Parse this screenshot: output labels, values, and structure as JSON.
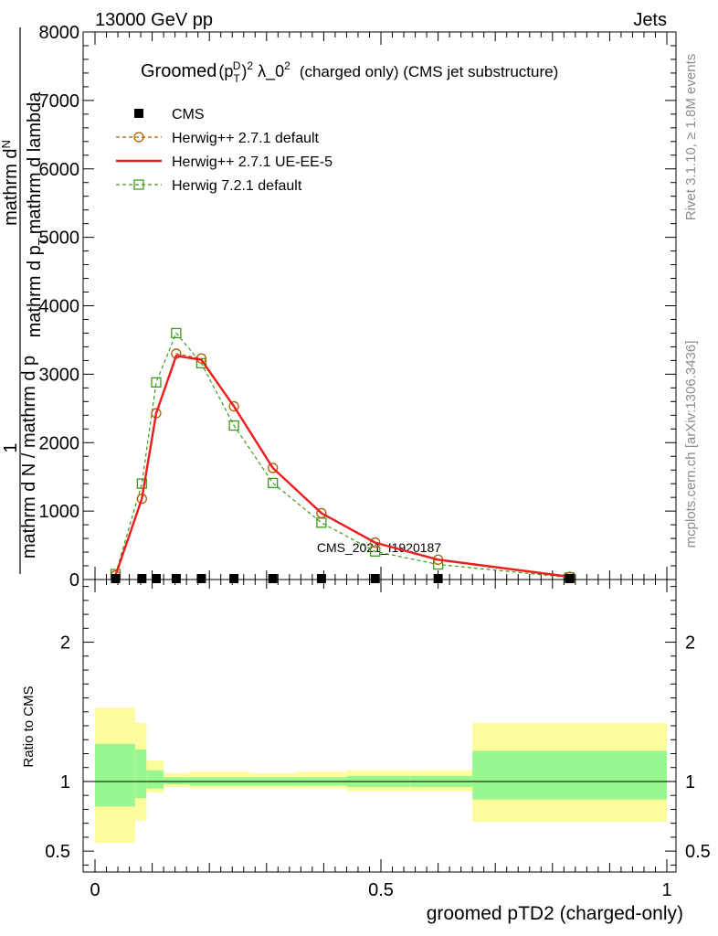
{
  "header": {
    "left": "13000 GeV pp",
    "right": "Jets"
  },
  "side_labels": {
    "top": "Rivet 3.1.10, ≥ 1.8M events",
    "bottom": "mcplots.cern.ch [arXiv:1306.3436]"
  },
  "chart_data": [
    {
      "type": "line",
      "panel": "main",
      "title_prefix": "Groomed",
      "title_math": "(p",
      "title_math_sub": "T",
      "title_math_sup": "D",
      "title_math_close": ")",
      "title_math_sup2": "2",
      "title_rest": " λ_0",
      "title_rest_sup": "2",
      "title_suffix": "(charged only) (CMS jet substructure)",
      "ylabel_parts": {
        "one": "1",
        "main_den": "mathrm d N / mathrm d p_T mathrm d p_T mathrm d lambda",
        "main_den_display": "mathrm d N / mathrm d p",
        "sub_num": "mathrm d",
        "sub_num2": "N",
        "sub_den": "mathrm d p",
        "sub_den2": "T",
        "sub_den3": "mathrm d lambda",
        "frac_num": "mathrm d",
        "frac_num2": "N"
      },
      "ylim": [
        0,
        8000
      ],
      "yticks": [
        0,
        1000,
        2000,
        3000,
        4000,
        5000,
        6000,
        7000,
        8000
      ],
      "ytick_labels": [
        "0",
        "1000",
        "2000",
        "3000",
        "4000",
        "5000",
        "6000",
        "7000",
        "8000"
      ],
      "xlim": [
        0,
        1
      ],
      "watermark": "CMS_2021_I1920187",
      "legend_position": "top-left",
      "series": [
        {
          "name": "CMS",
          "style": "markers",
          "color": "#000000",
          "x": [
            0.036,
            0.082,
            0.107,
            0.142,
            0.186,
            0.243,
            0.311,
            0.396,
            0.49,
            0.6,
            0.83
          ],
          "y": [
            0,
            0,
            0,
            0,
            0,
            0,
            0,
            0,
            0,
            0,
            0
          ]
        },
        {
          "name": "Herwig++ 2.7.1 default",
          "style": "dashed-circle",
          "color": "#b35a00",
          "x": [
            0.036,
            0.082,
            0.107,
            0.142,
            0.186,
            0.243,
            0.311,
            0.396,
            0.49,
            0.6,
            0.83
          ],
          "y": [
            60,
            1180,
            2430,
            3300,
            3230,
            2530,
            1630,
            970,
            540,
            290,
            40
          ]
        },
        {
          "name": "Herwig++ 2.7.1 UE-EE-5",
          "style": "solid",
          "color": "#ee1c1c",
          "x": [
            0.036,
            0.082,
            0.107,
            0.142,
            0.186,
            0.243,
            0.311,
            0.396,
            0.49,
            0.6,
            0.83
          ],
          "y": [
            60,
            1180,
            2430,
            3270,
            3210,
            2530,
            1630,
            970,
            540,
            290,
            40
          ]
        },
        {
          "name": "Herwig 7.2.1 default",
          "style": "dashed-square",
          "color": "#3c9a1a",
          "x": [
            0.036,
            0.082,
            0.107,
            0.142,
            0.186,
            0.243,
            0.311,
            0.396,
            0.49,
            0.6,
            0.83
          ],
          "y": [
            80,
            1400,
            2880,
            3600,
            3160,
            2250,
            1410,
            830,
            410,
            220,
            30
          ]
        }
      ]
    },
    {
      "type": "area",
      "panel": "ratio",
      "ylabel": "Ratio to CMS",
      "xlabel": "groomed pTD2 (charged-only)",
      "ylim": [
        0.35,
        2.45
      ],
      "yticks": [
        0.5,
        1,
        2
      ],
      "ytick_labels": [
        "0.5",
        "1",
        "2"
      ],
      "xticks": [
        0,
        0.5,
        1
      ],
      "xtick_labels": [
        "0",
        "0.5",
        "1"
      ],
      "bins": [
        {
          "x0": 0.0,
          "x1": 0.07,
          "inner": [
            0.82,
            1.27
          ],
          "outer": [
            0.56,
            1.53
          ]
        },
        {
          "x0": 0.07,
          "x1": 0.09,
          "inner": [
            0.88,
            1.23
          ],
          "outer": [
            0.72,
            1.42
          ]
        },
        {
          "x0": 0.09,
          "x1": 0.12,
          "inner": [
            0.95,
            1.08
          ],
          "outer": [
            0.92,
            1.15
          ]
        },
        {
          "x0": 0.12,
          "x1": 0.165,
          "inner": [
            0.98,
            1.03
          ],
          "outer": [
            0.96,
            1.06
          ]
        },
        {
          "x0": 0.165,
          "x1": 0.27,
          "inner": [
            0.97,
            1.03
          ],
          "outer": [
            0.95,
            1.07
          ]
        },
        {
          "x0": 0.27,
          "x1": 0.35,
          "inner": [
            0.97,
            1.03
          ],
          "outer": [
            0.95,
            1.06
          ]
        },
        {
          "x0": 0.35,
          "x1": 0.44,
          "inner": [
            0.97,
            1.03
          ],
          "outer": [
            0.95,
            1.07
          ]
        },
        {
          "x0": 0.44,
          "x1": 0.55,
          "inner": [
            0.96,
            1.04
          ],
          "outer": [
            0.93,
            1.08
          ]
        },
        {
          "x0": 0.55,
          "x1": 0.66,
          "inner": [
            0.96,
            1.04
          ],
          "outer": [
            0.93,
            1.08
          ]
        },
        {
          "x0": 0.66,
          "x1": 1.0,
          "inner": [
            0.87,
            1.22
          ],
          "outer": [
            0.71,
            1.42
          ]
        }
      ]
    }
  ],
  "colors": {
    "band_inner": "#99f78f",
    "band_outer": "#fcfc9c",
    "watermark": "#8c8c8c"
  }
}
